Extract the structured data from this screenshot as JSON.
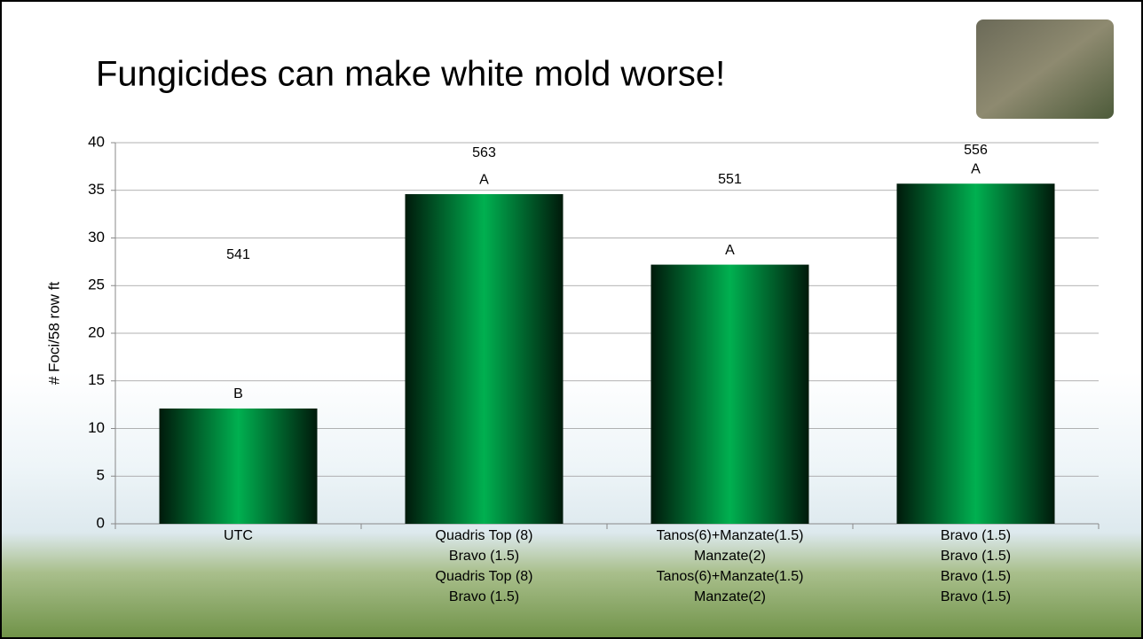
{
  "chart_data": {
    "type": "bar",
    "title": "Fungicides can make white mold worse!",
    "y_label": "# Foci/58 row ft",
    "categories": [
      [
        "UTC"
      ],
      [
        "Quadris Top (8)",
        "Bravo (1.5)",
        "Quadris Top (8)",
        "Bravo (1.5)"
      ],
      [
        "Tanos(6)+Manzate(1.5)",
        "Manzate(2)",
        "Tanos(6)+Manzate(1.5)",
        "Manzate(2)"
      ],
      [
        "Bravo (1.5)",
        "Bravo (1.5)",
        "Bravo (1.5)",
        "Bravo (1.5)"
      ]
    ],
    "values": [
      12.1,
      34.6,
      27.2,
      35.7
    ],
    "letters": [
      "B",
      "A",
      "A",
      "A"
    ],
    "yields": [
      541,
      563,
      551,
      556
    ],
    "color": "#00b050",
    "ylim": [
      0,
      40
    ],
    "yticks": [
      0,
      5,
      10,
      15,
      20,
      25,
      30,
      35,
      40
    ],
    "grid": true
  }
}
